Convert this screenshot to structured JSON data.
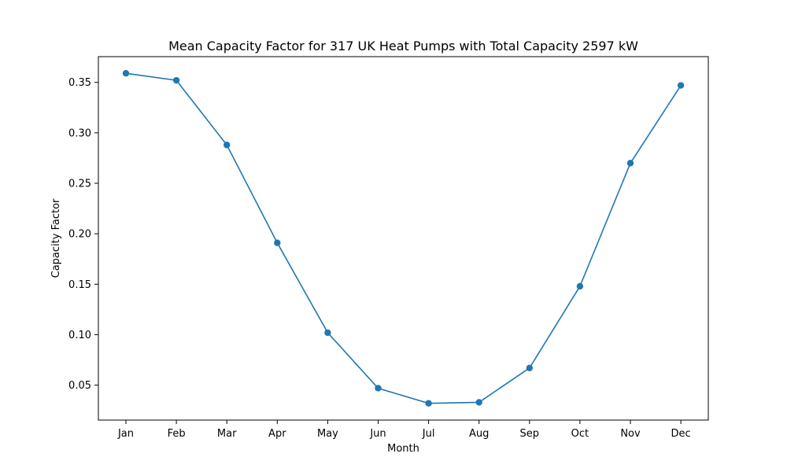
{
  "chart_data": {
    "type": "line",
    "title": "Mean Capacity Factor for 317 UK Heat Pumps with Total Capacity 2597 kW",
    "xlabel": "Month",
    "ylabel": "Capacity Factor",
    "categories": [
      "Jan",
      "Feb",
      "Mar",
      "Apr",
      "May",
      "Jun",
      "Jul",
      "Aug",
      "Sep",
      "Oct",
      "Nov",
      "Dec"
    ],
    "series": [
      {
        "values": [
          0.359,
          0.352,
          0.288,
          0.191,
          0.102,
          0.047,
          0.032,
          0.033,
          0.067,
          0.148,
          0.27,
          0.347
        ],
        "color": "#1f77b4",
        "marker": "circle"
      }
    ],
    "yticks": [
      "0.05",
      "0.10",
      "0.15",
      "0.20",
      "0.25",
      "0.30",
      "0.35"
    ],
    "ylim": [
      0.0154,
      0.3755
    ],
    "grid": false,
    "legend": "none"
  }
}
